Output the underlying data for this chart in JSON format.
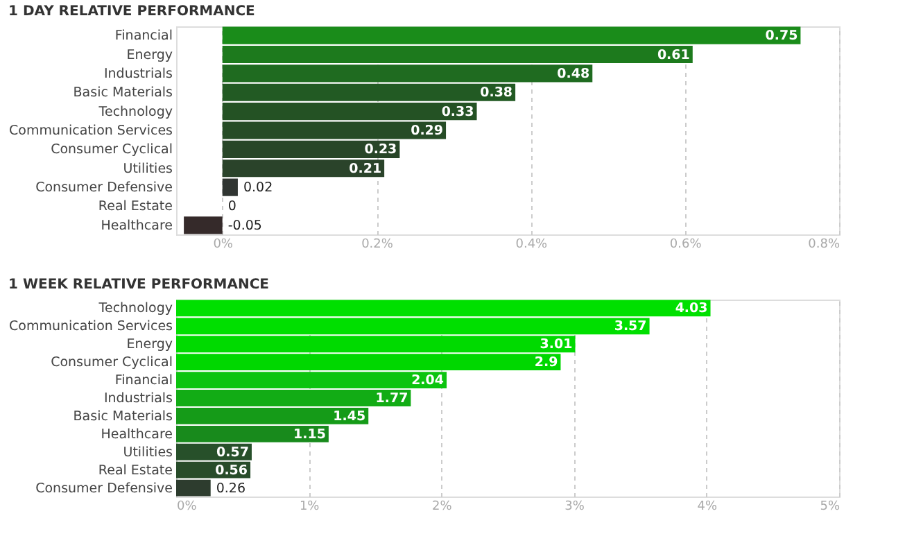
{
  "chart_data": [
    {
      "type": "bar",
      "orientation": "horizontal",
      "title": "1 DAY RELATIVE PERFORMANCE",
      "categories": [
        "Financial",
        "Energy",
        "Industrials",
        "Basic Materials",
        "Technology",
        "Communication Services",
        "Consumer Cyclical",
        "Utilities",
        "Consumer Defensive",
        "Real Estate",
        "Healthcare"
      ],
      "values": [
        0.75,
        0.61,
        0.48,
        0.38,
        0.33,
        0.29,
        0.23,
        0.21,
        0.02,
        0,
        -0.05
      ],
      "colors": [
        "#1a8c1a",
        "#1d7a1d",
        "#1f6b20",
        "#225a23",
        "#245224",
        "#264c26",
        "#284628",
        "#2a432a",
        "#303532",
        "#313131",
        "#352a2a"
      ],
      "data_labels": true,
      "xlim": [
        -0.06,
        0.8
      ],
      "xticks": [
        {
          "value": 0,
          "label": "0%"
        },
        {
          "value": 0.2,
          "label": "0.2%"
        },
        {
          "value": 0.4,
          "label": "0.4%"
        },
        {
          "value": 0.6,
          "label": "0.6%"
        },
        {
          "value": 0.8,
          "label": "0.8%"
        }
      ],
      "grid": "x"
    },
    {
      "type": "bar",
      "orientation": "horizontal",
      "title": "1 WEEK RELATIVE PERFORMANCE",
      "categories": [
        "Technology",
        "Communication Services",
        "Energy",
        "Consumer Cyclical",
        "Financial",
        "Industrials",
        "Basic Materials",
        "Healthcare",
        "Utilities",
        "Real Estate",
        "Consumer Defensive"
      ],
      "values": [
        4.03,
        3.57,
        3.01,
        2.9,
        2.04,
        1.77,
        1.45,
        1.15,
        0.57,
        0.56,
        0.26
      ],
      "colors": [
        "#00e000",
        "#00df00",
        "#00da00",
        "#00d700",
        "#0cc40f",
        "#12ac15",
        "#159b18",
        "#188a1c",
        "#27502a",
        "#284c2a",
        "#2d3c2e"
      ],
      "data_labels": true,
      "xlim": [
        0,
        5
      ],
      "xticks": [
        {
          "value": 0,
          "label": "0%"
        },
        {
          "value": 1,
          "label": "1%"
        },
        {
          "value": 2,
          "label": "2%"
        },
        {
          "value": 3,
          "label": "3%"
        },
        {
          "value": 4,
          "label": "4%"
        },
        {
          "value": 5,
          "label": "5%"
        }
      ],
      "grid": "x"
    }
  ]
}
